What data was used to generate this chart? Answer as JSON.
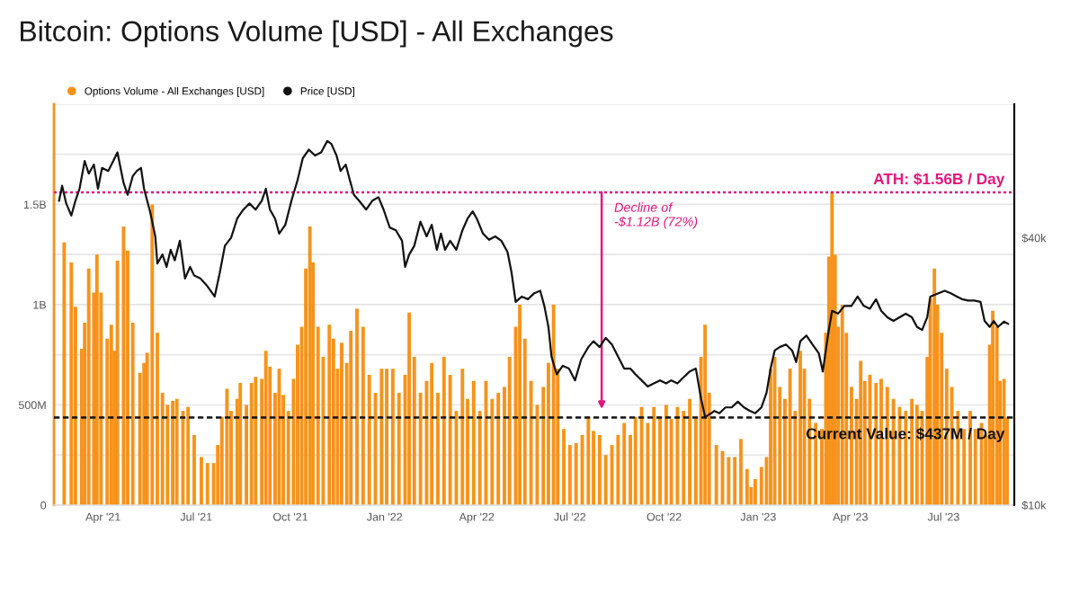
{
  "chart_data": {
    "type": "bar",
    "title": "Bitcoin: Options Volume [USD] - All Exchanges",
    "series": [
      {
        "name": "Options Volume - All Exchanges [USD]",
        "color": "#f7931a",
        "x": [
          "2021-02-22",
          "2021-03-01",
          "2021-03-05",
          "2021-03-11",
          "2021-03-14",
          "2021-03-18",
          "2021-03-23",
          "2021-03-26",
          "2021-03-30",
          "2021-04-05",
          "2021-04-09",
          "2021-04-12",
          "2021-04-15",
          "2021-04-21",
          "2021-04-25",
          "2021-04-30",
          "2021-05-07",
          "2021-05-11",
          "2021-05-14",
          "2021-05-19",
          "2021-05-24",
          "2021-05-29",
          "2021-06-03",
          "2021-06-08",
          "2021-06-12",
          "2021-06-18",
          "2021-06-23",
          "2021-06-29",
          "2021-07-06",
          "2021-07-12",
          "2021-07-18",
          "2021-07-22",
          "2021-07-26",
          "2021-07-31",
          "2021-08-04",
          "2021-08-10",
          "2021-08-13",
          "2021-08-19",
          "2021-08-24",
          "2021-08-28",
          "2021-09-03",
          "2021-09-07",
          "2021-09-11",
          "2021-09-16",
          "2021-09-20",
          "2021-09-24",
          "2021-09-29",
          "2021-10-04",
          "2021-10-08",
          "2021-10-12",
          "2021-10-16",
          "2021-10-20",
          "2021-10-23",
          "2021-10-28",
          "2021-11-02",
          "2021-11-08",
          "2021-11-12",
          "2021-11-16",
          "2021-11-20",
          "2021-11-25",
          "2021-11-29",
          "2021-12-05",
          "2021-12-11",
          "2021-12-17",
          "2021-12-23",
          "2021-12-29",
          "2022-01-03",
          "2022-01-09",
          "2022-01-15",
          "2022-01-21",
          "2022-01-25",
          "2022-01-30",
          "2022-02-05",
          "2022-02-11",
          "2022-02-16",
          "2022-02-22",
          "2022-02-28",
          "2022-03-06",
          "2022-03-12",
          "2022-03-18",
          "2022-03-23",
          "2022-03-29",
          "2022-04-04",
          "2022-04-10",
          "2022-04-16",
          "2022-04-22",
          "2022-04-28",
          "2022-05-03",
          "2022-05-09",
          "2022-05-13",
          "2022-05-18",
          "2022-05-24",
          "2022-05-30",
          "2022-06-05",
          "2022-06-10",
          "2022-06-15",
          "2022-06-19",
          "2022-06-25",
          "2022-07-01",
          "2022-07-07",
          "2022-07-13",
          "2022-07-19",
          "2022-07-24",
          "2022-07-30",
          "2022-08-05",
          "2022-08-11",
          "2022-08-17",
          "2022-08-23",
          "2022-08-29",
          "2022-09-03",
          "2022-09-09",
          "2022-09-15",
          "2022-09-21",
          "2022-09-27",
          "2022-10-03",
          "2022-10-08",
          "2022-10-14",
          "2022-10-20",
          "2022-10-26",
          "2022-11-01",
          "2022-11-06",
          "2022-11-10",
          "2022-11-14",
          "2022-11-21",
          "2022-11-27",
          "2022-12-03",
          "2022-12-09",
          "2022-12-15",
          "2022-12-21",
          "2022-12-25",
          "2022-12-29",
          "2023-01-04",
          "2023-01-09",
          "2023-01-13",
          "2023-01-17",
          "2023-01-22",
          "2023-01-27",
          "2023-02-01",
          "2023-02-06",
          "2023-02-11",
          "2023-02-15",
          "2023-02-20",
          "2023-02-26",
          "2023-03-04",
          "2023-03-08",
          "2023-03-11",
          "2023-03-14",
          "2023-03-17",
          "2023-03-20",
          "2023-03-24",
          "2023-03-28",
          "2023-04-02",
          "2023-04-07",
          "2023-04-11",
          "2023-04-15",
          "2023-04-20",
          "2023-04-26",
          "2023-05-01",
          "2023-05-07",
          "2023-05-13",
          "2023-05-19",
          "2023-05-25",
          "2023-05-31",
          "2023-06-05",
          "2023-06-10",
          "2023-06-15",
          "2023-06-18",
          "2023-06-22",
          "2023-06-25",
          "2023-06-29",
          "2023-07-04",
          "2023-07-09",
          "2023-07-15",
          "2023-07-21",
          "2023-07-27",
          "2023-08-01",
          "2023-08-07",
          "2023-08-11",
          "2023-08-15",
          "2023-08-18",
          "2023-08-22",
          "2023-08-25",
          "2023-08-29",
          "2023-09-01"
        ],
        "values": [
          1310000000.0,
          1210000000.0,
          990000000.0,
          780000000.0,
          910000000.0,
          1180000000.0,
          1060000000.0,
          1250000000.0,
          1060000000.0,
          830000000.0,
          900000000.0,
          770000000.0,
          1220000000.0,
          1390000000.0,
          1270000000.0,
          910000000.0,
          660000000.0,
          710000000.0,
          760000000.0,
          1500000000.0,
          860000000.0,
          560000000.0,
          500000000.0,
          520000000.0,
          530000000.0,
          470000000.0,
          490000000.0,
          350000000.0,
          240000000.0,
          210000000.0,
          210000000.0,
          300000000.0,
          440000000.0,
          580000000.0,
          470000000.0,
          530000000.0,
          610000000.0,
          500000000.0,
          610000000.0,
          640000000.0,
          630000000.0,
          770000000.0,
          690000000.0,
          560000000.0,
          680000000.0,
          550000000.0,
          470000000.0,
          630000000.0,
          800000000.0,
          890000000.0,
          1180000000.0,
          1390000000.0,
          1210000000.0,
          890000000.0,
          740000000.0,
          900000000.0,
          830000000.0,
          680000000.0,
          810000000.0,
          710000000.0,
          870000000.0,
          980000000.0,
          890000000.0,
          650000000.0,
          560000000.0,
          680000000.0,
          680000000.0,
          680000000.0,
          560000000.0,
          650000000.0,
          960000000.0,
          740000000.0,
          560000000.0,
          620000000.0,
          710000000.0,
          560000000.0,
          740000000.0,
          650000000.0,
          470000000.0,
          680000000.0,
          530000000.0,
          620000000.0,
          470000000.0,
          620000000.0,
          530000000.0,
          560000000.0,
          590000000.0,
          740000000.0,
          890000000.0,
          1000000000.0,
          830000000.0,
          620000000.0,
          500000000.0,
          590000000.0,
          710000000.0,
          1000000000.0,
          680000000.0,
          380000000.0,
          300000000.0,
          310000000.0,
          350000000.0,
          440000000.0,
          370000000.0,
          350000000.0,
          250000000.0,
          300000000.0,
          350000000.0,
          410000000.0,
          350000000.0,
          440000000.0,
          490000000.0,
          410000000.0,
          490000000.0,
          440000000.0,
          500000000.0,
          430000000.0,
          490000000.0,
          470000000.0,
          530000000.0,
          440000000.0,
          740000000.0,
          900000000.0,
          560000000.0,
          300000000.0,
          270000000.0,
          240000000.0,
          240000000.0,
          330000000.0,
          180000000.0,
          90000000.0,
          130000000.0,
          190000000.0,
          240000000.0,
          680000000.0,
          740000000.0,
          590000000.0,
          530000000.0,
          680000000.0,
          470000000.0,
          770000000.0,
          680000000.0,
          530000000.0,
          410000000.0,
          380000000.0,
          860000000.0,
          1240000000.0,
          1560000000.0,
          1250000000.0,
          890000000.0,
          1000000000.0,
          860000000.0,
          590000000.0,
          530000000.0,
          720000000.0,
          620000000.0,
          650000000.0,
          610000000.0,
          630000000.0,
          590000000.0,
          530000000.0,
          490000000.0,
          470000000.0,
          530000000.0,
          500000000.0,
          470000000.0,
          740000000.0,
          1030000000.0,
          1180000000.0,
          1000000000.0,
          860000000.0,
          680000000.0,
          590000000.0,
          470000000.0,
          380000000.0,
          470000000.0,
          380000000.0,
          410000000.0,
          350000000.0,
          800000000.0,
          970000000.0,
          890000000.0,
          620000000.0,
          630000000.0,
          437000000.0
        ]
      },
      {
        "name": "Price [USD]",
        "type": "line",
        "axis": "y2",
        "color": "#111111",
        "x": [
          "2021-02-17",
          "2021-02-20",
          "2021-02-24",
          "2021-03-01",
          "2021-03-05",
          "2021-03-09",
          "2021-03-14",
          "2021-03-18",
          "2021-03-23",
          "2021-03-27",
          "2021-03-31",
          "2021-04-06",
          "2021-04-11",
          "2021-04-15",
          "2021-04-21",
          "2021-04-25",
          "2021-04-30",
          "2021-05-04",
          "2021-05-08",
          "2021-05-11",
          "2021-05-17",
          "2021-05-22",
          "2021-05-24",
          "2021-05-29",
          "2021-06-02",
          "2021-06-06",
          "2021-06-10",
          "2021-06-15",
          "2021-06-20",
          "2021-06-25",
          "2021-06-29",
          "2021-07-05",
          "2021-07-11",
          "2021-07-19",
          "2021-07-24",
          "2021-07-29",
          "2021-08-04",
          "2021-08-10",
          "2021-08-16",
          "2021-08-22",
          "2021-08-28",
          "2021-09-03",
          "2021-09-07",
          "2021-09-11",
          "2021-09-16",
          "2021-09-20",
          "2021-09-26",
          "2021-10-02",
          "2021-10-08",
          "2021-10-13",
          "2021-10-19",
          "2021-10-25",
          "2021-10-31",
          "2021-11-06",
          "2021-11-10",
          "2021-11-15",
          "2021-11-19",
          "2021-11-24",
          "2021-11-28",
          "2021-12-02",
          "2021-12-07",
          "2021-12-14",
          "2021-12-20",
          "2021-12-26",
          "2021-12-31",
          "2022-01-06",
          "2022-01-12",
          "2022-01-18",
          "2022-01-21",
          "2022-01-25",
          "2022-01-30",
          "2022-02-05",
          "2022-02-11",
          "2022-02-16",
          "2022-02-21",
          "2022-02-25",
          "2022-03-01",
          "2022-03-06",
          "2022-03-12",
          "2022-03-18",
          "2022-03-23",
          "2022-03-28",
          "2022-04-01",
          "2022-04-07",
          "2022-04-13",
          "2022-04-19",
          "2022-04-25",
          "2022-05-01",
          "2022-05-05",
          "2022-05-09",
          "2022-05-15",
          "2022-05-21",
          "2022-05-27",
          "2022-06-02",
          "2022-06-06",
          "2022-06-10",
          "2022-06-13",
          "2022-06-18",
          "2022-06-24",
          "2022-06-30",
          "2022-07-06",
          "2022-07-12",
          "2022-07-19",
          "2022-07-24",
          "2022-07-30",
          "2022-08-05",
          "2022-08-11",
          "2022-08-17",
          "2022-08-23",
          "2022-08-29",
          "2022-09-03",
          "2022-09-09",
          "2022-09-15",
          "2022-09-21",
          "2022-09-27",
          "2022-10-03",
          "2022-10-08",
          "2022-10-14",
          "2022-10-20",
          "2022-10-26",
          "2022-11-01",
          "2022-11-06",
          "2022-11-10",
          "2022-11-16",
          "2022-11-19",
          "2022-11-24",
          "2022-11-30",
          "2022-12-06",
          "2022-12-12",
          "2022-12-18",
          "2022-12-24",
          "2022-12-29",
          "2023-01-04",
          "2023-01-09",
          "2023-01-13",
          "2023-01-17",
          "2023-01-22",
          "2023-01-28",
          "2023-02-03",
          "2023-02-07",
          "2023-02-11",
          "2023-02-17",
          "2023-02-23",
          "2023-03-01",
          "2023-03-05",
          "2023-03-10",
          "2023-03-14",
          "2023-03-20",
          "2023-03-26",
          "2023-04-02",
          "2023-04-08",
          "2023-04-14",
          "2023-04-20",
          "2023-04-26",
          "2023-05-01",
          "2023-05-07",
          "2023-05-13",
          "2023-05-19",
          "2023-05-25",
          "2023-05-31",
          "2023-06-05",
          "2023-06-10",
          "2023-06-15",
          "2023-06-18",
          "2023-06-26",
          "2023-07-02",
          "2023-07-08",
          "2023-07-14",
          "2023-07-19",
          "2023-07-25",
          "2023-07-31",
          "2023-08-06",
          "2023-08-10",
          "2023-08-15",
          "2023-08-19",
          "2023-08-23",
          "2023-08-29",
          "2023-09-02"
        ],
        "values": [
          48500,
          52400,
          47800,
          44900,
          48500,
          51600,
          59600,
          55800,
          58500,
          51600,
          57500,
          56600,
          59600,
          62300,
          53200,
          50000,
          55100,
          56600,
          57500,
          51600,
          45700,
          40300,
          35000,
          36700,
          34400,
          37600,
          35600,
          39400,
          32400,
          34400,
          32900,
          32400,
          31300,
          29500,
          33400,
          38400,
          40000,
          44200,
          46300,
          47800,
          46300,
          48500,
          51600,
          46300,
          44200,
          40900,
          42800,
          48500,
          54000,
          60400,
          63200,
          61300,
          62300,
          66100,
          65100,
          61300,
          56600,
          58500,
          54000,
          50000,
          48500,
          46300,
          48500,
          49400,
          46300,
          42200,
          41600,
          39400,
          34400,
          36700,
          38400,
          43500,
          40300,
          42800,
          37600,
          40900,
          37600,
          39400,
          37600,
          41600,
          44200,
          45900,
          44200,
          40900,
          39600,
          40300,
          39400,
          37200,
          33400,
          28700,
          29500,
          29100,
          30000,
          30400,
          28100,
          25200,
          21600,
          19700,
          20600,
          20300,
          19100,
          21300,
          22700,
          23400,
          22700,
          23800,
          23000,
          21600,
          20300,
          20300,
          19700,
          19100,
          18500,
          18800,
          19100,
          18800,
          19100,
          18800,
          19400,
          20000,
          20300,
          17400,
          15800,
          16100,
          16300,
          16100,
          16600,
          16600,
          17100,
          16600,
          16300,
          16100,
          16600,
          17900,
          20300,
          22300,
          22700,
          23000,
          22300,
          21000,
          23400,
          24100,
          23000,
          22000,
          20000,
          24100,
          27400,
          27000,
          28100,
          28100,
          29500,
          28100,
          27700,
          29100,
          27400,
          26500,
          26000,
          26500,
          27000,
          26500,
          25200,
          24800,
          26500,
          29500,
          30000,
          30400,
          30000,
          29500,
          29100,
          28900,
          28900,
          28700,
          26000,
          25200,
          26000,
          25200,
          25900,
          25600
        ]
      }
    ],
    "xlim": [
      "2021-02-12",
      "2023-09-08"
    ],
    "xticks": [
      {
        "value": "2021-04-01",
        "label": "Apr '21"
      },
      {
        "value": "2021-07-01",
        "label": "Jul '21"
      },
      {
        "value": "2021-10-01",
        "label": "Oct '21"
      },
      {
        "value": "2022-01-01",
        "label": "Jan '22"
      },
      {
        "value": "2022-04-01",
        "label": "Apr '22"
      },
      {
        "value": "2022-07-01",
        "label": "Jul '22"
      },
      {
        "value": "2022-10-01",
        "label": "Oct '22"
      },
      {
        "value": "2023-01-01",
        "label": "Jan '23"
      },
      {
        "value": "2023-04-01",
        "label": "Apr '23"
      },
      {
        "value": "2023-07-01",
        "label": "Jul '23"
      }
    ],
    "ylim": [
      0,
      2000000000.0
    ],
    "yticks": [
      0,
      {
        "value": 250000000.0,
        "label": null
      },
      {
        "value": 500000000.0,
        "label": "500M"
      },
      {
        "value": 750000000.0,
        "label": null
      },
      {
        "value": 1000000000.0,
        "label": "1B"
      },
      {
        "value": 1250000000.0,
        "label": null
      },
      {
        "value": 1500000000.0,
        "label": "1.5B"
      },
      {
        "value": 1750000000.0,
        "label": null
      },
      {
        "value": 2000000000.0,
        "label": null
      }
    ],
    "y2lim": [
      10000,
      80000
    ],
    "y2ticks": [
      {
        "value": 10000,
        "label": "$10k"
      },
      {
        "value": 40000,
        "label": "$40k"
      }
    ],
    "log": "y2",
    "grid": "y",
    "legend": "top left",
    "ref_lines": [
      {
        "axis": "y",
        "value": 1560000000.0,
        "label": "ATH: $1.56B / Day",
        "color": "#e5177b",
        "line_style": "dotted"
      },
      {
        "axis": "y",
        "value": 437000000.0,
        "label": "Current Value: $437M / Day",
        "color": "#111111",
        "line_style": "dashed"
      }
    ],
    "annotations": [
      {
        "text": "Decline of\n-$1.12B (72%)",
        "x": "2022-08-01",
        "y": 480000000.0
      }
    ]
  }
}
